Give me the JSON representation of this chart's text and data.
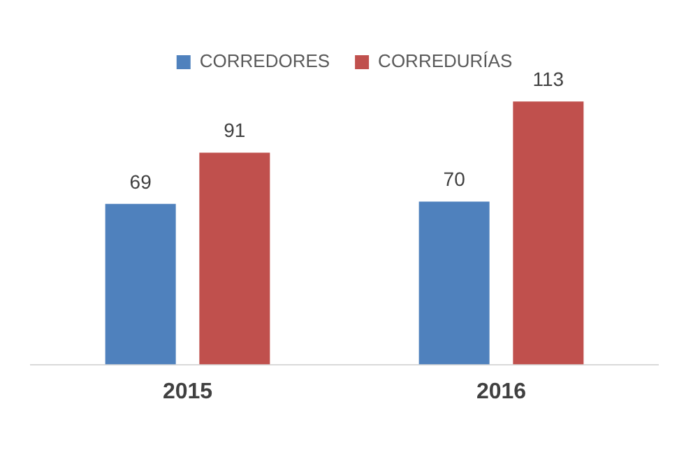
{
  "chart_data": {
    "type": "bar",
    "categories": [
      "2015",
      "2016"
    ],
    "series": [
      {
        "name": "CORREDORES",
        "color": "#4f81bd",
        "values": [
          69,
          70
        ]
      },
      {
        "name": "CORREDURÍAS",
        "color": "#c0504d",
        "values": [
          91,
          113
        ]
      }
    ],
    "data_labels": true,
    "legend": "top",
    "grid": false
  }
}
